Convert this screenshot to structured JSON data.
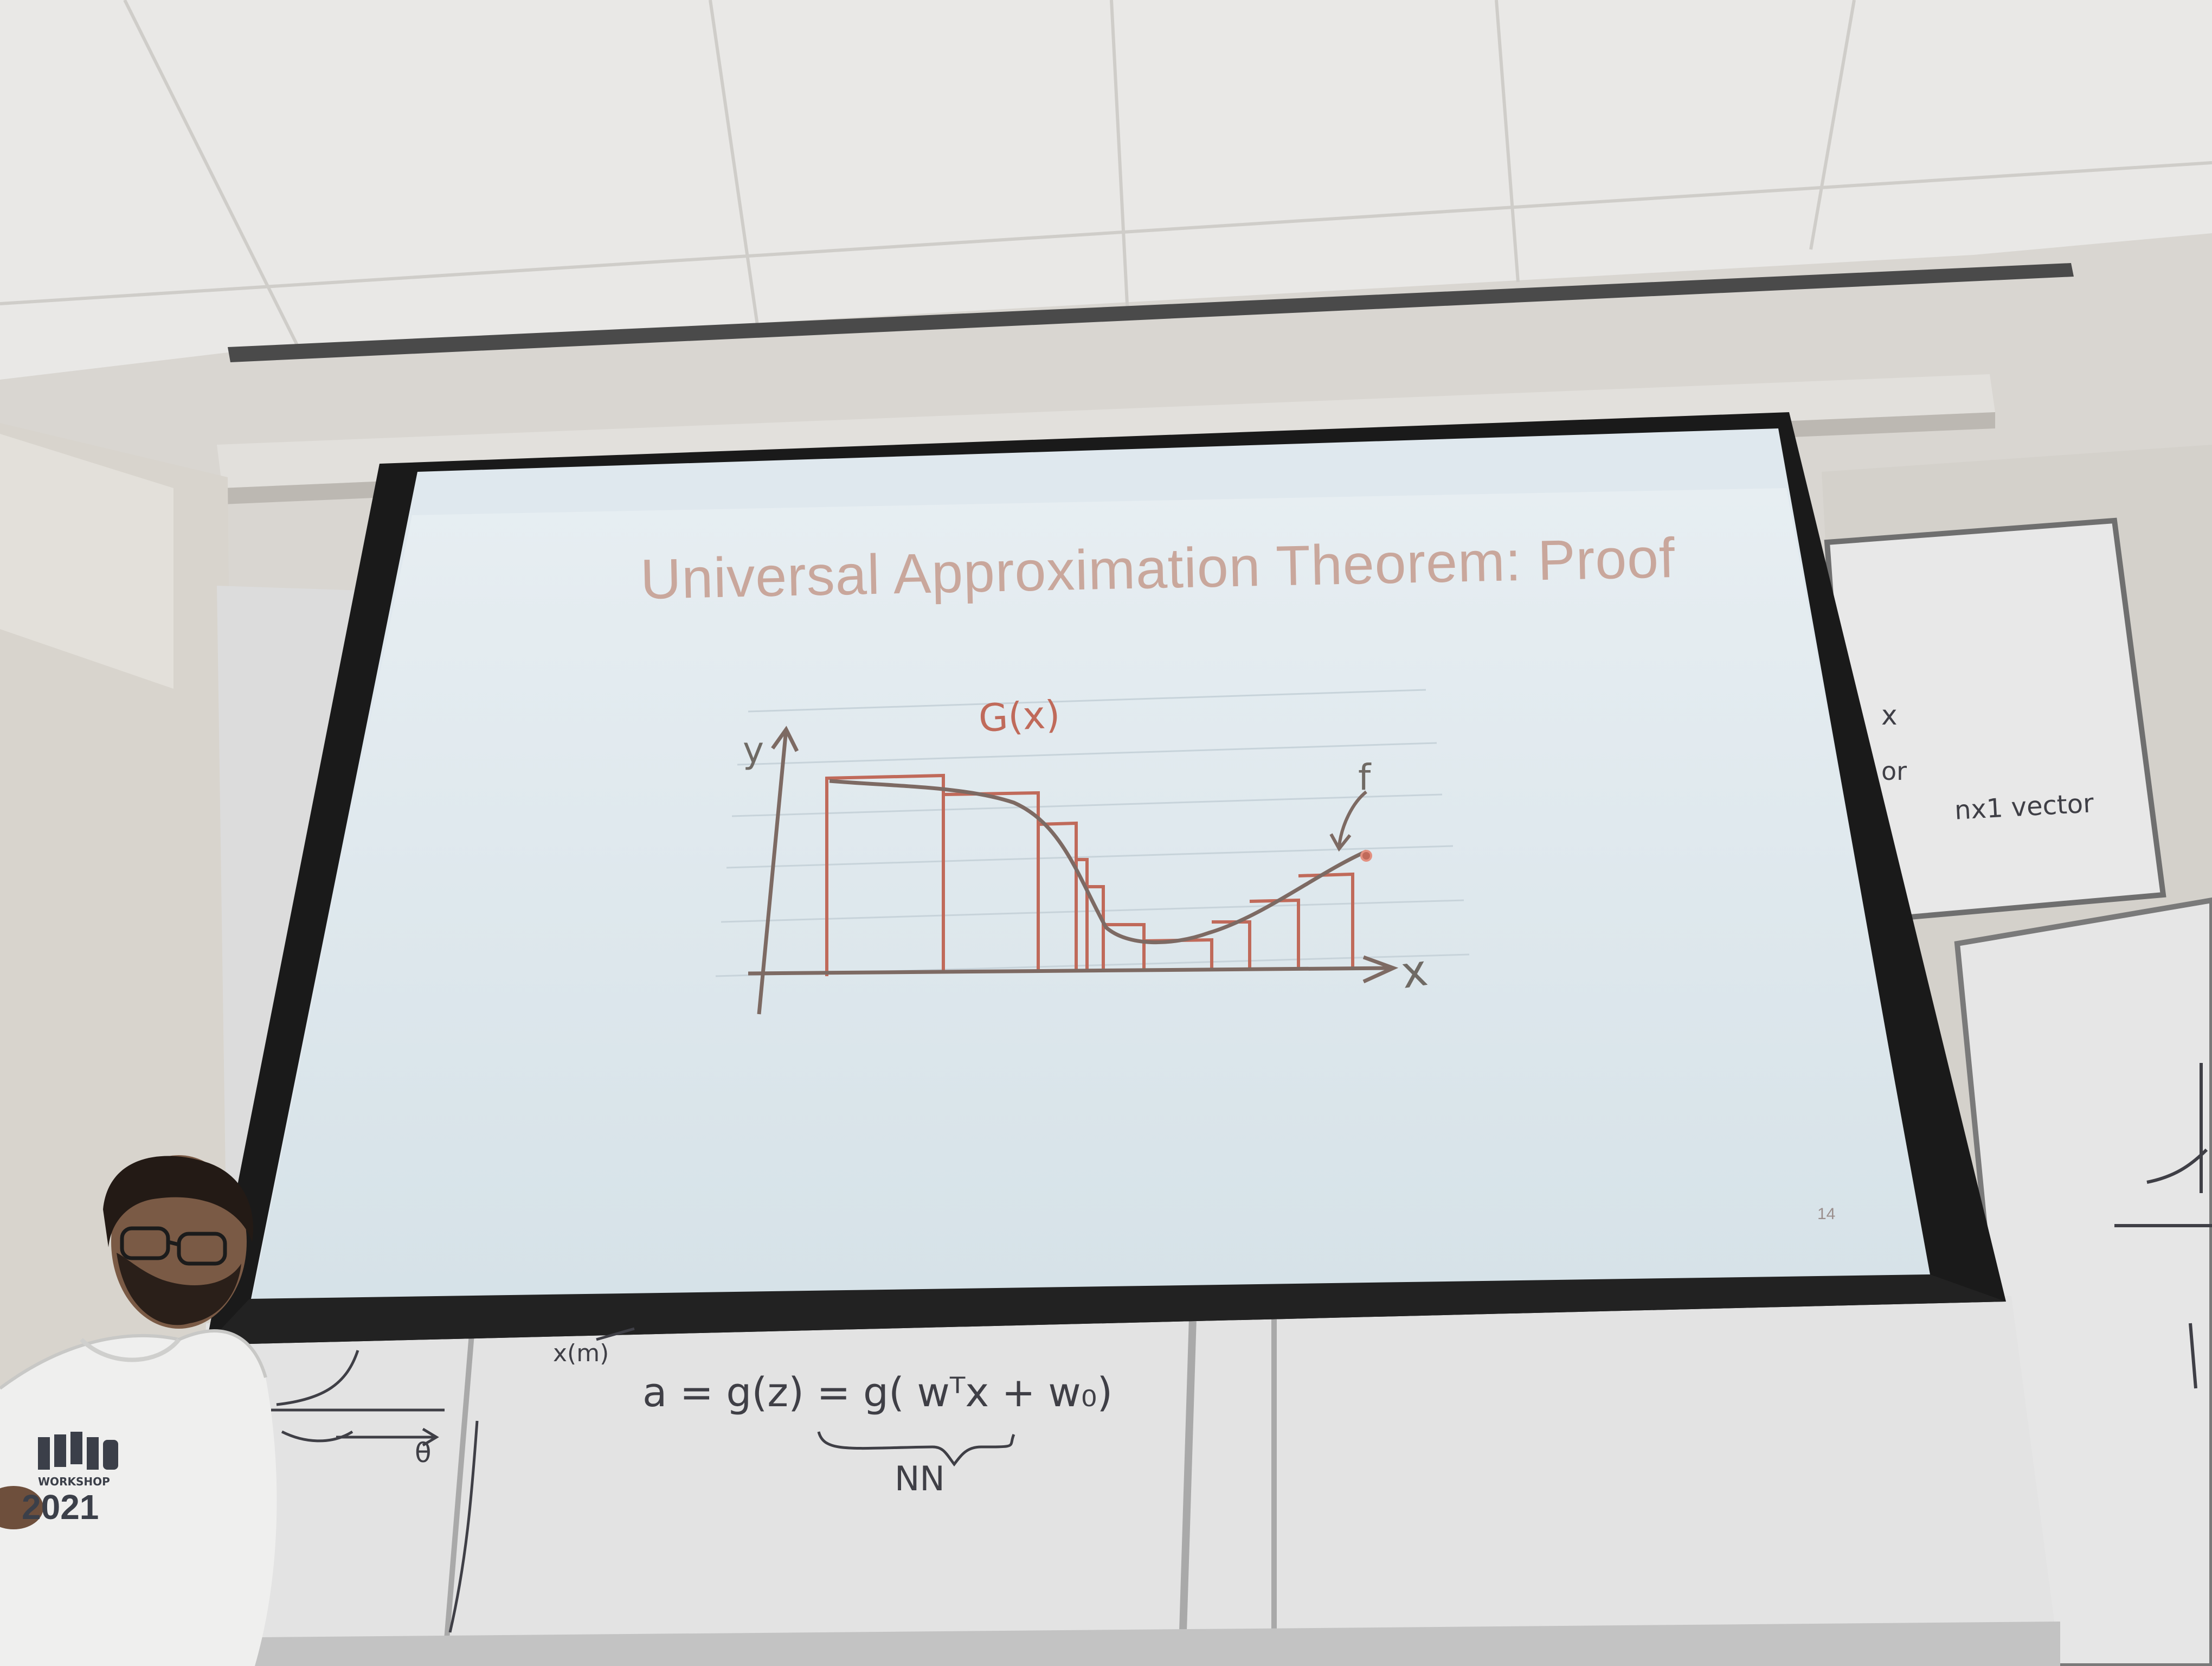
{
  "slide": {
    "title": "Universal Approximation Theorem: Proof",
    "page_number": "14",
    "sketch": {
      "g_label": "G(x)",
      "y_label": "y",
      "x_label": "x",
      "f_label": "f"
    }
  },
  "whiteboard": {
    "equation": "a = g(z) = g( wᵀx + w₀)",
    "brace_label": "NN",
    "fragment_xm": "x(m)",
    "fragment_theta": "θ",
    "right_fragments": [
      "x",
      "or",
      "nx1 vector"
    ]
  },
  "presenter": {
    "shirt_text": "2021",
    "shirt_subtext": "WORKSHOP"
  },
  "colors": {
    "ceiling": "#e9e8e6",
    "wall": "#d7d4cf",
    "screen": "#dfe8ee",
    "slide_title": "#c9a79c",
    "sketch_red": "#c06a5a",
    "sketch_curve": "#7d6a63",
    "whiteboard": "#e4e4e4"
  }
}
